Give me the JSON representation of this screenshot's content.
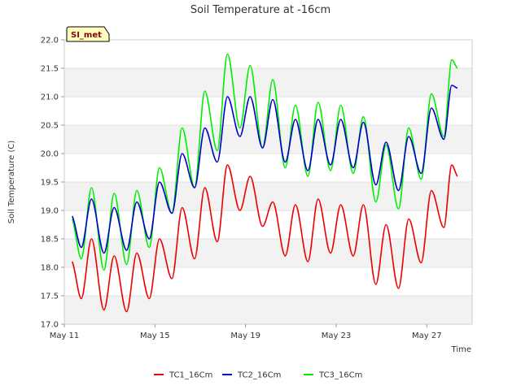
{
  "chart_data": {
    "type": "line",
    "title": "Soil Temperature at -16cm",
    "xlabel": "Time",
    "ylabel": "Soil Temperature (C)",
    "site_badge": "SI_met",
    "ylim": [
      17.0,
      22.0
    ],
    "xlim": [
      0,
      18
    ],
    "y_ticks": [
      "17.0",
      "17.5",
      "18.0",
      "18.5",
      "19.0",
      "19.5",
      "20.0",
      "20.5",
      "21.0",
      "21.5",
      "22.0"
    ],
    "x_ticks": [
      {
        "day": 0,
        "label": "May 11"
      },
      {
        "day": 4,
        "label": "May 15"
      },
      {
        "day": 8,
        "label": "May 19"
      },
      {
        "day": 12,
        "label": "May 23"
      },
      {
        "day": 16,
        "label": "May 27"
      }
    ],
    "x_unit": "days since May 11",
    "series": [
      {
        "name": "TC1_16Cm",
        "color": "#ee0000",
        "x": [
          0.35,
          0.75,
          1.2,
          1.75,
          2.2,
          2.75,
          3.2,
          3.75,
          4.2,
          4.75,
          5.2,
          5.75,
          6.2,
          6.75,
          7.2,
          7.75,
          8.2,
          8.75,
          9.2,
          9.75,
          10.2,
          10.75,
          11.2,
          11.75,
          12.2,
          12.75,
          13.2,
          13.75,
          14.2,
          14.75,
          15.2,
          15.75,
          16.2,
          16.75,
          17.1,
          17.35
        ],
        "values": [
          18.1,
          17.45,
          18.5,
          17.25,
          18.2,
          17.22,
          18.25,
          17.45,
          18.5,
          17.8,
          19.05,
          18.15,
          19.4,
          18.45,
          19.8,
          19.0,
          19.6,
          18.72,
          19.15,
          18.2,
          19.1,
          18.1,
          19.2,
          18.25,
          19.1,
          18.2,
          19.1,
          17.7,
          18.75,
          17.63,
          18.85,
          18.08,
          19.35,
          18.7,
          19.8,
          19.6
        ]
      },
      {
        "name": "TC2_16Cm",
        "color": "#0000cc",
        "x": [
          0.35,
          0.75,
          1.2,
          1.75,
          2.2,
          2.75,
          3.2,
          3.75,
          4.2,
          4.75,
          5.2,
          5.75,
          6.2,
          6.75,
          7.2,
          7.75,
          8.2,
          8.75,
          9.2,
          9.75,
          10.2,
          10.75,
          11.2,
          11.75,
          12.2,
          12.75,
          13.2,
          13.75,
          14.2,
          14.75,
          15.2,
          15.75,
          16.2,
          16.75,
          17.1,
          17.35
        ],
        "values": [
          18.9,
          18.35,
          19.2,
          18.25,
          19.05,
          18.3,
          19.15,
          18.5,
          19.5,
          18.95,
          20.0,
          19.4,
          20.45,
          19.85,
          21.0,
          20.3,
          21.0,
          20.1,
          20.95,
          19.85,
          20.6,
          19.7,
          20.6,
          19.8,
          20.6,
          19.75,
          20.55,
          19.45,
          20.2,
          19.35,
          20.3,
          19.65,
          20.8,
          20.25,
          21.2,
          21.15
        ]
      },
      {
        "name": "TC3_16Cm",
        "color": "#00ee00",
        "x": [
          0.35,
          0.75,
          1.2,
          1.75,
          2.2,
          2.75,
          3.2,
          3.75,
          4.2,
          4.75,
          5.2,
          5.75,
          6.2,
          6.75,
          7.2,
          7.75,
          8.2,
          8.75,
          9.2,
          9.75,
          10.2,
          10.75,
          11.2,
          11.75,
          12.2,
          12.75,
          13.2,
          13.75,
          14.2,
          14.75,
          15.2,
          15.75,
          16.2,
          16.75,
          17.1,
          17.35
        ],
        "values": [
          18.85,
          18.15,
          19.4,
          17.95,
          19.3,
          18.05,
          19.35,
          18.35,
          19.75,
          18.95,
          20.45,
          19.4,
          21.1,
          20.05,
          21.75,
          20.45,
          21.55,
          20.1,
          21.3,
          19.75,
          20.85,
          19.6,
          20.9,
          19.7,
          20.85,
          19.65,
          20.65,
          19.15,
          20.15,
          19.03,
          20.45,
          19.55,
          21.05,
          20.3,
          21.65,
          21.5
        ]
      }
    ]
  }
}
